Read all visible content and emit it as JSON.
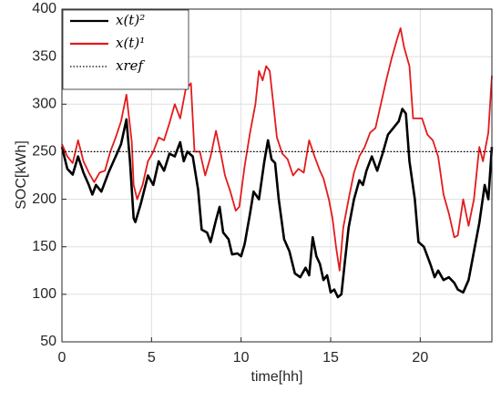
{
  "chart_data": {
    "type": "line",
    "xlabel": "time[hh]",
    "ylabel": "SOC[kWh]",
    "xlim": [
      0,
      24
    ],
    "xticks": [
      0,
      5,
      10,
      15,
      20
    ],
    "ylim": [
      50,
      400
    ],
    "yticks": [
      50,
      100,
      150,
      200,
      250,
      300,
      350,
      400
    ],
    "grid": true,
    "legend": "upper left",
    "series": [
      {
        "name": "x(t)²",
        "color": "#000000",
        "style": "solid",
        "x": [
          0,
          0.3,
          0.6,
          0.9,
          1.2,
          1.5,
          1.7,
          1.9,
          2.2,
          2.6,
          3.0,
          3.3,
          3.6,
          3.8,
          4.0,
          4.1,
          4.4,
          4.8,
          5.1,
          5.4,
          5.7,
          6.0,
          6.3,
          6.6,
          6.8,
          7.0,
          7.3,
          7.6,
          7.8,
          8.1,
          8.3,
          8.6,
          8.8,
          9.0,
          9.3,
          9.5,
          9.8,
          10.0,
          10.2,
          10.5,
          10.7,
          11.0,
          11.3,
          11.5,
          11.7,
          11.9,
          12.1,
          12.4,
          12.7,
          13.0,
          13.3,
          13.6,
          13.8,
          14.0,
          14.2,
          14.4,
          14.6,
          14.8,
          15.0,
          15.2,
          15.4,
          15.6,
          15.8,
          16.0,
          16.3,
          16.6,
          16.8,
          17.0,
          17.3,
          17.6,
          17.9,
          18.2,
          18.5,
          18.8,
          19.0,
          19.2,
          19.4,
          19.7,
          19.9,
          20.2,
          20.4,
          20.6,
          20.8,
          21.0,
          21.3,
          21.6,
          21.9,
          22.1,
          22.4,
          22.7,
          23.0,
          23.3,
          23.6,
          23.8,
          24.0
        ],
        "values": [
          255,
          232,
          226,
          245,
          228,
          215,
          205,
          215,
          208,
          228,
          245,
          258,
          284,
          240,
          180,
          176,
          195,
          225,
          215,
          240,
          230,
          248,
          245,
          260,
          240,
          250,
          245,
          210,
          168,
          165,
          155,
          178,
          192,
          165,
          158,
          142,
          143,
          140,
          153,
          185,
          208,
          200,
          240,
          262,
          242,
          238,
          200,
          158,
          145,
          122,
          118,
          128,
          120,
          160,
          140,
          132,
          115,
          120,
          102,
          105,
          97,
          100,
          135,
          170,
          200,
          220,
          215,
          230,
          245,
          230,
          248,
          268,
          275,
          282,
          295,
          290,
          240,
          200,
          155,
          150,
          140,
          130,
          118,
          125,
          115,
          118,
          112,
          105,
          102,
          115,
          145,
          175,
          215,
          200,
          255
        ]
      },
      {
        "name": "x(t)¹",
        "color": "#e41a1c",
        "style": "solid",
        "x": [
          0,
          0.3,
          0.6,
          0.9,
          1.2,
          1.5,
          1.8,
          2.1,
          2.4,
          2.7,
          3.0,
          3.3,
          3.6,
          3.9,
          4.0,
          4.2,
          4.5,
          4.8,
          5.1,
          5.4,
          5.7,
          6.0,
          6.3,
          6.6,
          6.9,
          7.2,
          7.4,
          7.7,
          8.0,
          8.3,
          8.6,
          8.9,
          9.1,
          9.4,
          9.7,
          9.9,
          10.2,
          10.5,
          10.8,
          11.0,
          11.2,
          11.4,
          11.6,
          11.8,
          12.0,
          12.3,
          12.6,
          12.9,
          13.2,
          13.5,
          13.8,
          14.1,
          14.4,
          14.6,
          14.9,
          15.1,
          15.3,
          15.5,
          15.7,
          16.0,
          16.3,
          16.6,
          16.9,
          17.2,
          17.5,
          17.8,
          18.1,
          18.4,
          18.7,
          18.9,
          19.1,
          19.4,
          19.6,
          19.8,
          20.1,
          20.4,
          20.7,
          21.0,
          21.3,
          21.6,
          21.9,
          22.1,
          22.4,
          22.7,
          23.0,
          23.3,
          23.5,
          23.8,
          24.0
        ],
        "values": [
          258,
          245,
          238,
          262,
          240,
          228,
          218,
          228,
          230,
          250,
          265,
          282,
          310,
          260,
          215,
          200,
          215,
          240,
          250,
          265,
          262,
          280,
          300,
          285,
          315,
          322,
          250,
          250,
          225,
          245,
          272,
          245,
          225,
          208,
          188,
          192,
          235,
          270,
          300,
          335,
          325,
          340,
          335,
          300,
          265,
          248,
          242,
          225,
          232,
          228,
          262,
          245,
          230,
          222,
          200,
          180,
          150,
          125,
          170,
          200,
          228,
          245,
          255,
          270,
          275,
          300,
          325,
          348,
          368,
          380,
          360,
          340,
          285,
          285,
          285,
          268,
          262,
          245,
          205,
          185,
          160,
          162,
          200,
          172,
          200,
          255,
          240,
          270,
          330
        ]
      },
      {
        "name": "xref",
        "color": "#000000",
        "style": "dotted",
        "x": [
          0,
          24
        ],
        "values": [
          250,
          250
        ]
      }
    ]
  }
}
